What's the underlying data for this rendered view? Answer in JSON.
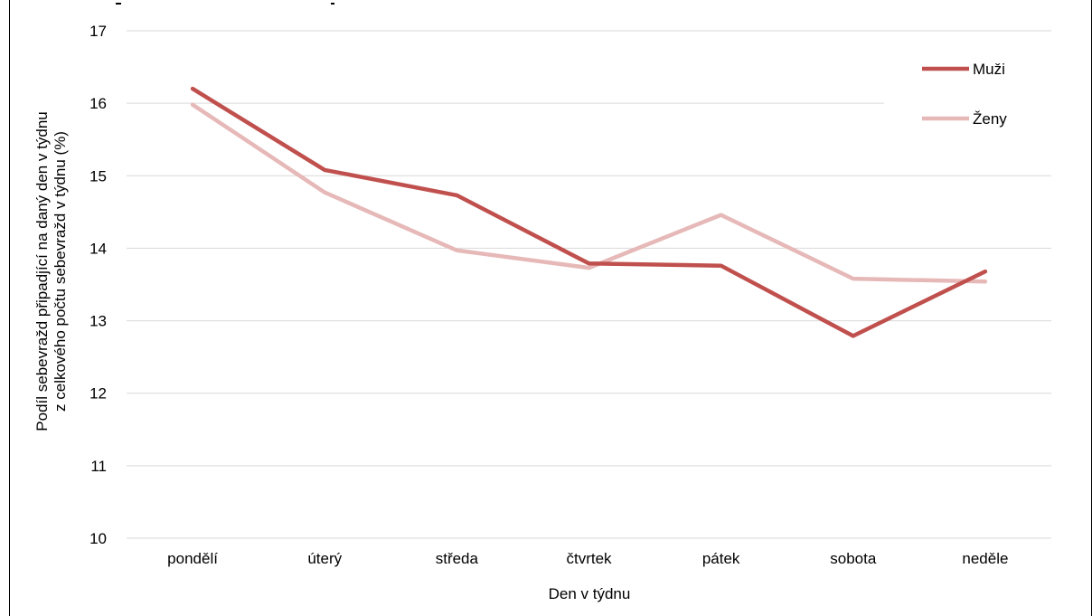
{
  "chart_data": {
    "type": "line",
    "title": "",
    "xlabel": "Den v týdnu",
    "ylabel_lines": [
      "Podíl sebevražd připadjící na daný den v týdnu",
      "z celkového počtu sebevražd v týdnu (%)"
    ],
    "categories": [
      "pondělí",
      "úterý",
      "středa",
      "čtvrtek",
      "pátek",
      "sobota",
      "neděle"
    ],
    "ylim": [
      10,
      17
    ],
    "yticks": [
      10,
      11,
      12,
      13,
      14,
      15,
      16,
      17
    ],
    "grid": true,
    "legend_position": "top-right",
    "series": [
      {
        "name": "Muži",
        "color": "#c0504d",
        "values": [
          16.2,
          15.08,
          14.73,
          13.79,
          13.76,
          12.79,
          13.68
        ]
      },
      {
        "name": "Ženy",
        "color": "#e6b9b8",
        "values": [
          15.98,
          14.77,
          13.97,
          13.73,
          14.46,
          13.58,
          13.54
        ]
      }
    ]
  }
}
